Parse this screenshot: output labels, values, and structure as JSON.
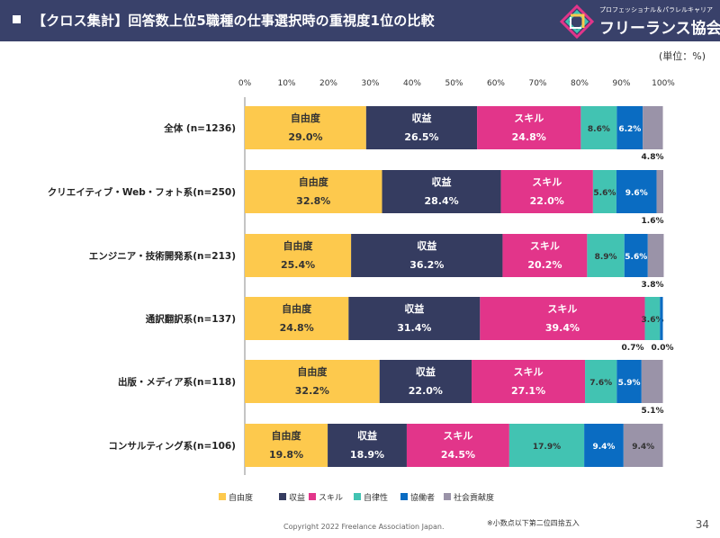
{
  "header": {
    "title": "【クロス集計】回答数上位5職種の仕事選択時の重視度1位の比較",
    "logo_sub": "プロフェッショナル＆パラレルキャリア",
    "logo_name": "フリーランス協会"
  },
  "unit_label": "(単位：%)",
  "chart_data": {
    "type": "bar",
    "orientation": "horizontal",
    "stacked": true,
    "xlim": [
      0,
      100
    ],
    "x_ticks": [
      "0%",
      "10%",
      "20%",
      "30%",
      "40%",
      "50%",
      "60%",
      "70%",
      "80%",
      "90%",
      "100%"
    ],
    "categories": [
      "全体 (n=1236)",
      "クリエイティブ・Web・フォト系(n=250)",
      "エンジニア・技術開発系(n=213)",
      "通訳翻訳系(n=137)",
      "出版・メディア系(n=118)",
      "コンサルティング系(n=106)"
    ],
    "series": [
      {
        "name": "自由度",
        "color": "#fdc94d",
        "values": [
          29.0,
          32.8,
          25.4,
          24.8,
          32.2,
          19.8
        ]
      },
      {
        "name": "収益",
        "color": "#353c60",
        "values": [
          26.5,
          28.4,
          36.2,
          31.4,
          22.0,
          18.9
        ]
      },
      {
        "name": "スキル",
        "color": "#e2358a",
        "values": [
          24.8,
          22.0,
          20.2,
          39.4,
          27.1,
          24.5
        ]
      },
      {
        "name": "自律性",
        "color": "#42c3b2",
        "values": [
          8.6,
          5.6,
          8.9,
          3.6,
          7.6,
          17.9
        ]
      },
      {
        "name": "協働者",
        "color": "#0a6cc2",
        "values": [
          6.2,
          9.6,
          5.6,
          0.7,
          5.9,
          9.4
        ]
      },
      {
        "name": "社会貢献度",
        "color": "#9a93a8",
        "values": [
          4.8,
          1.6,
          3.8,
          0.0,
          5.1,
          9.4
        ]
      }
    ],
    "value_labels": [
      [
        "29.0%",
        "26.5%",
        "24.8%",
        "8.6%",
        "6.2%",
        "4.8%"
      ],
      [
        "32.8%",
        "28.4%",
        "22.0%",
        "5.6%",
        "9.6%",
        "1.6%"
      ],
      [
        "25.4%",
        "36.2%",
        "20.2%",
        "8.9%",
        "5.6%",
        "3.8%"
      ],
      [
        "24.8%",
        "31.4%",
        "39.4%",
        "3.6%",
        "0.7%",
        "0.0%"
      ],
      [
        "32.2%",
        "22.0%",
        "27.1%",
        "7.6%",
        "5.9%",
        "5.1%"
      ],
      [
        "19.8%",
        "18.9%",
        "24.5%",
        "17.9%",
        "9.4%",
        "9.4%"
      ]
    ],
    "legend_position": "bottom",
    "grid": false
  },
  "footer": {
    "copyright": "Copyright 2022 Freelance Association Japan.",
    "note": "※小数点以下第二位四捨五入",
    "page": "34"
  }
}
